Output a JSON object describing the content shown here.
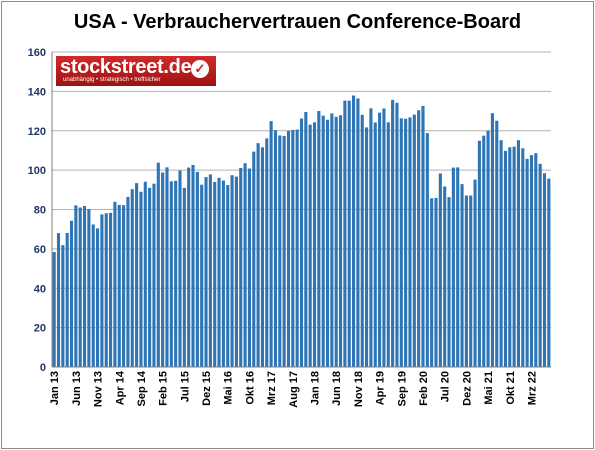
{
  "chart_data": {
    "type": "bar",
    "title": "USA - Verbrauchervertrauen Conference-Board",
    "xlabel": "",
    "ylabel": "",
    "ylim": [
      0,
      160
    ],
    "yticks": [
      0,
      20,
      40,
      60,
      80,
      100,
      120,
      140,
      160
    ],
    "grid": true,
    "legend": "none",
    "bar_color": "#2e75b6",
    "tick_labels": [
      "Jan 13",
      "Jun 13",
      "Nov 13",
      "Apr 14",
      "Sep 14",
      "Feb 15",
      "Jul 15",
      "Dez 15",
      "Mai 16",
      "Okt 16",
      "Mrz 17",
      "Aug 17",
      "Jan 18",
      "Jun 18",
      "Nov 18",
      "Apr 19",
      "Sep 19",
      "Feb 20",
      "Jul 20",
      "Dez 20",
      "Mai 21",
      "Okt 21",
      "Mrz 22"
    ],
    "start": "2013-01",
    "values": [
      58.4,
      68.0,
      61.9,
      68.1,
      74.3,
      82.1,
      81.0,
      81.8,
      80.2,
      72.4,
      70.4,
      77.5,
      78.1,
      78.3,
      83.9,
      82.3,
      82.2,
      86.4,
      90.3,
      93.4,
      89.0,
      94.1,
      91.0,
      93.1,
      103.8,
      98.8,
      101.4,
      94.3,
      94.6,
      99.8,
      91.0,
      101.3,
      102.6,
      99.1,
      92.6,
      96.5,
      97.8,
      94.0,
      96.1,
      94.7,
      92.4,
      97.4,
      96.7,
      101.1,
      103.5,
      100.8,
      109.4,
      113.7,
      111.6,
      116.1,
      124.9,
      120.3,
      117.6,
      117.3,
      120.0,
      120.4,
      120.6,
      126.2,
      129.5,
      123.1,
      124.3,
      130.0,
      127.7,
      125.6,
      128.8,
      127.1,
      127.9,
      135.3,
      135.3,
      137.9,
      136.4,
      128.1,
      121.7,
      131.4,
      124.2,
      129.2,
      131.3,
      124.3,
      135.7,
      134.2,
      126.3,
      126.1,
      126.8,
      128.2,
      130.4,
      132.6,
      118.8,
      85.7,
      85.9,
      98.3,
      91.7,
      86.3,
      101.3,
      101.4,
      92.9,
      87.1,
      87.1,
      95.2,
      114.9,
      117.5,
      120.0,
      128.9,
      125.1,
      115.2,
      109.8,
      111.6,
      111.9,
      115.2,
      111.1,
      105.7,
      107.6,
      108.6,
      103.2,
      98.4,
      95.7
    ]
  },
  "logo": {
    "name": "stockstreet.de",
    "tagline": "unabhängig • strategisch • treffsicher"
  }
}
